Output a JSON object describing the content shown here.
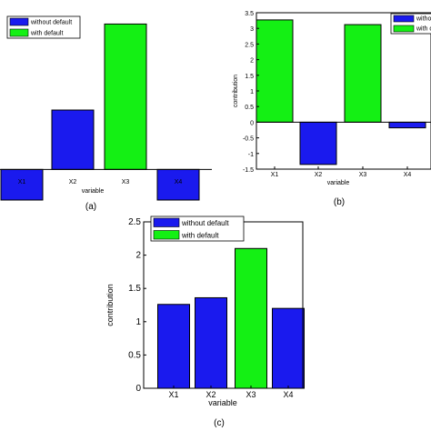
{
  "colors": {
    "without_default": "#1a1aee",
    "with_default": "#14f014"
  },
  "panel_letters": [
    "(a)",
    "(b)",
    "(c)"
  ],
  "chart_data": [
    {
      "type": "bar",
      "panel": "(a)",
      "categories": [
        "X1",
        "X2",
        "X3",
        "X4"
      ],
      "series": [
        {
          "name": "without default",
          "values": [
            -1.0,
            1.94,
            null,
            -1.0
          ]
        },
        {
          "name": "with default",
          "values": [
            null,
            null,
            4.75,
            null
          ]
        }
      ],
      "xlabel": "variable",
      "ylabel": "",
      "ylim": [
        -1.0,
        5.0
      ],
      "legend": "top-left"
    },
    {
      "type": "bar",
      "panel": "(b)",
      "categories": [
        "X1",
        "X2",
        "X3",
        "X4"
      ],
      "series": [
        {
          "name": "without default",
          "values": [
            null,
            -1.35,
            null,
            -0.18
          ]
        },
        {
          "name": "with default",
          "values": [
            3.27,
            null,
            3.12,
            null
          ]
        }
      ],
      "xlabel": "variable",
      "ylabel": "contribution",
      "ylim": [
        -1.5,
        3.5
      ],
      "yticks": [
        -1.5,
        -1,
        -0.5,
        0,
        0.5,
        1,
        1.5,
        2,
        2.5,
        3,
        3.5
      ],
      "legend": "top-right"
    },
    {
      "type": "bar",
      "panel": "(c)",
      "categories": [
        "X1",
        "X2",
        "X3",
        "X4"
      ],
      "series": [
        {
          "name": "without default",
          "values": [
            1.26,
            1.36,
            null,
            1.2
          ]
        },
        {
          "name": "with default",
          "values": [
            null,
            null,
            2.1,
            null
          ]
        }
      ],
      "xlabel": "variable",
      "ylabel": "contribution",
      "ylim": [
        0,
        2.5
      ],
      "yticks": [
        0,
        0.5,
        1,
        1.5,
        2,
        2.5
      ],
      "legend": "top-left"
    }
  ]
}
